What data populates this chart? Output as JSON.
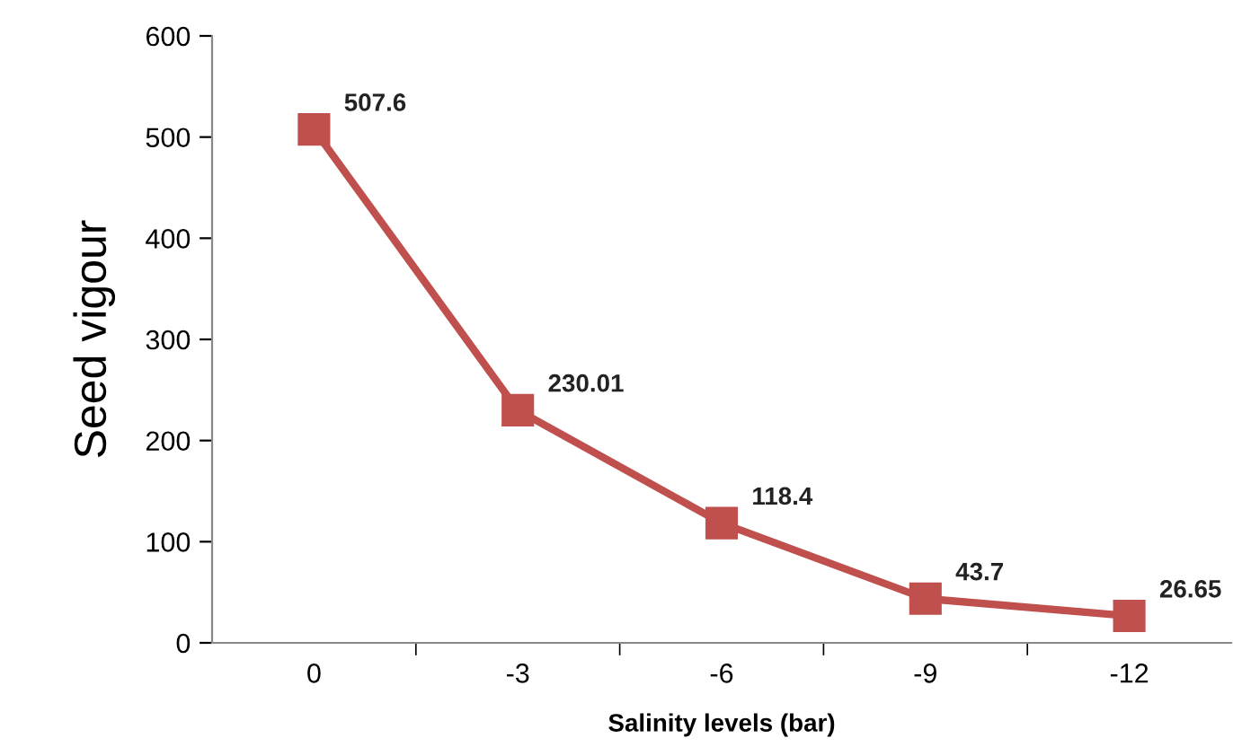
{
  "chart_data": {
    "type": "line",
    "xlabel": "Salinity levels (bar)",
    "ylabel": "Seed vigour",
    "categories": [
      "0",
      "-3",
      "-6",
      "-9",
      "-12"
    ],
    "series": [
      {
        "color": "#c0504d",
        "values": [
          507.6,
          230.01,
          118.4,
          43.7,
          26.65
        ]
      }
    ],
    "ylim": [
      0,
      600
    ],
    "yticks": [
      0,
      100,
      200,
      300,
      400,
      500,
      600
    ],
    "marker": "square",
    "line_style": "solid",
    "data_labels": true,
    "grid": false,
    "legend": false
  }
}
